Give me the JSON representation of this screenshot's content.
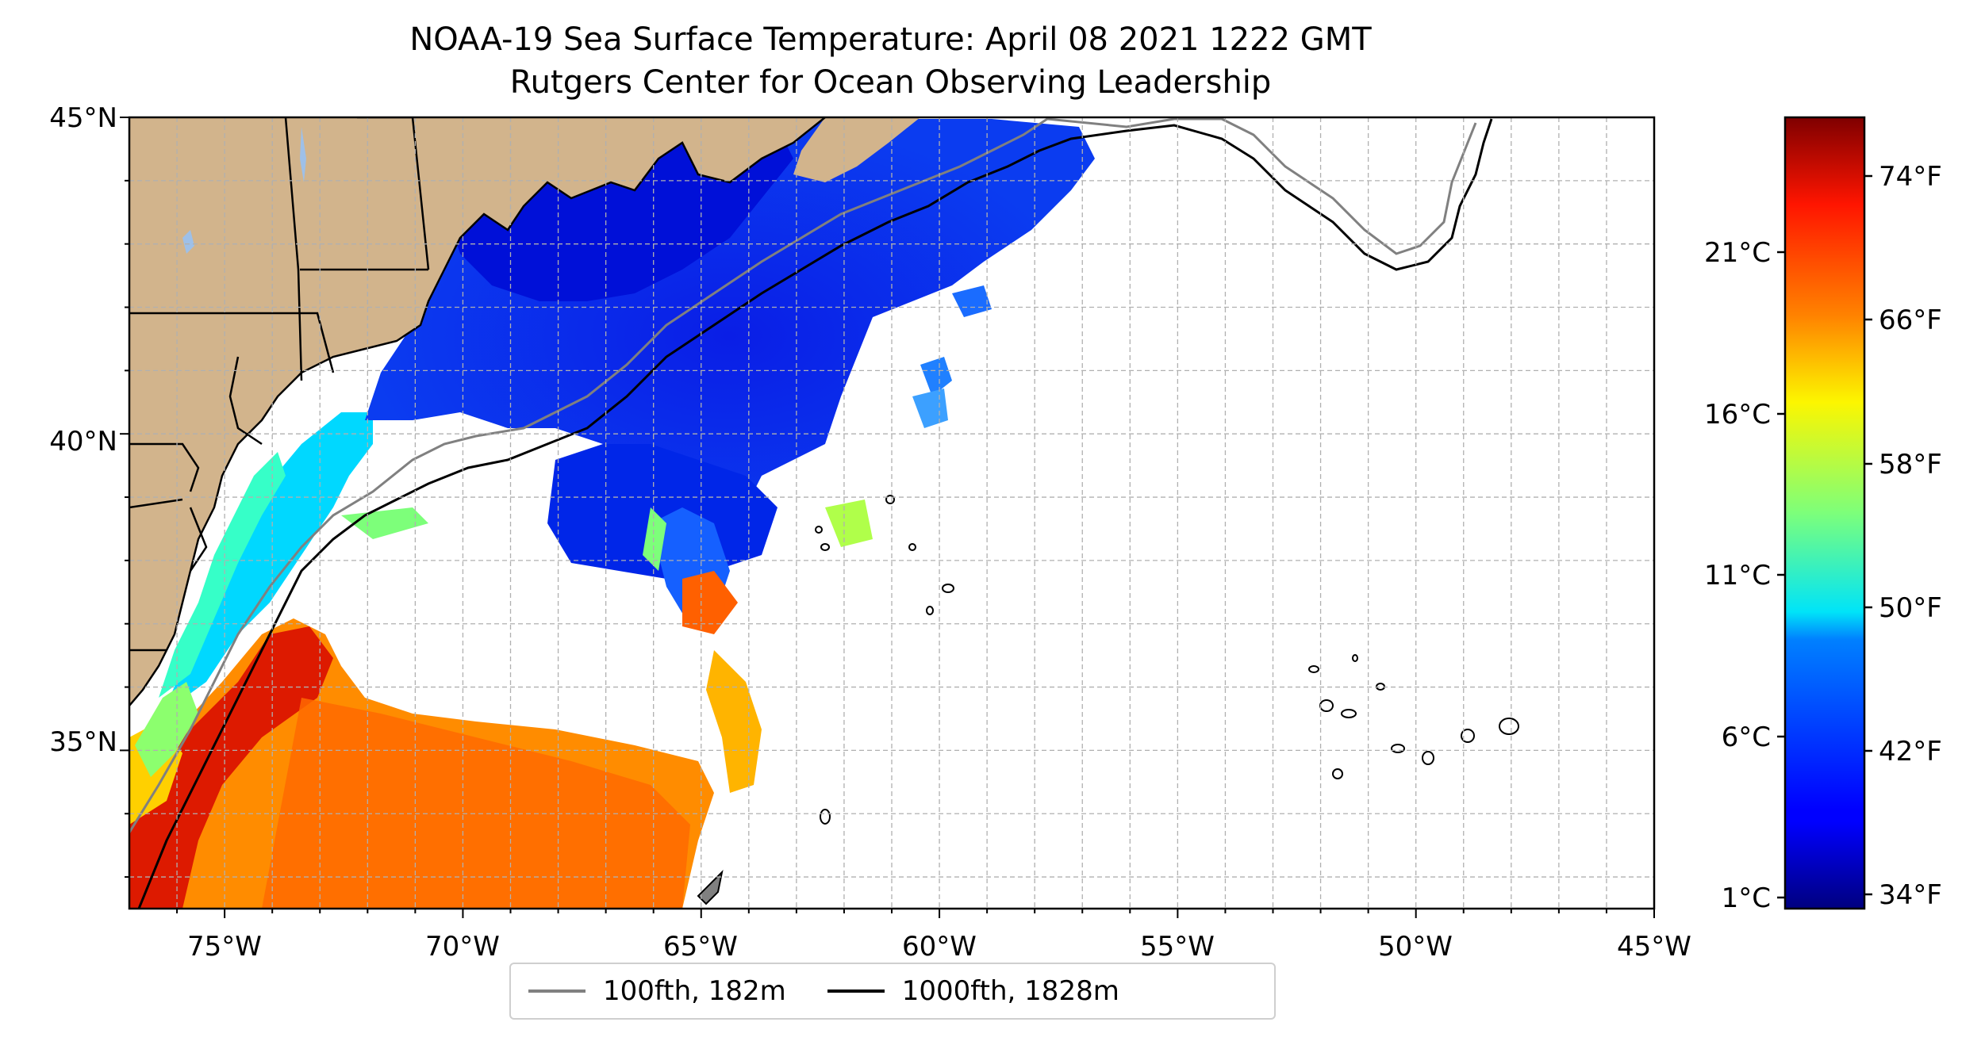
{
  "title": "NOAA-19 Sea Surface Temperature: April 08 2021 1222 GMT",
  "subtitle": "Rutgers Center for Ocean Observing Leadership",
  "map": {
    "lon_range": [
      -77,
      -45
    ],
    "lat_range": [
      32.5,
      45
    ],
    "lon_ticks": [
      "75°W",
      "70°W",
      "65°W",
      "60°W",
      "55°W",
      "50°W",
      "45°W"
    ],
    "lat_ticks": [
      "45°N",
      "40°N",
      "35°N"
    ],
    "land_color": "#d2b48c",
    "grid": true
  },
  "colorbar": {
    "colormap": "jet",
    "celsius_ticks": [
      "21°C",
      "16°C",
      "11°C",
      "6°C",
      "1°C"
    ],
    "fahrenheit_ticks": [
      "74°F",
      "66°F",
      "58°F",
      "50°F",
      "42°F",
      "34°F"
    ]
  },
  "legend": [
    {
      "label": "100fth, 182m",
      "color": "#808080"
    },
    {
      "label": "1000fth, 1828m",
      "color": "#000000"
    }
  ]
}
